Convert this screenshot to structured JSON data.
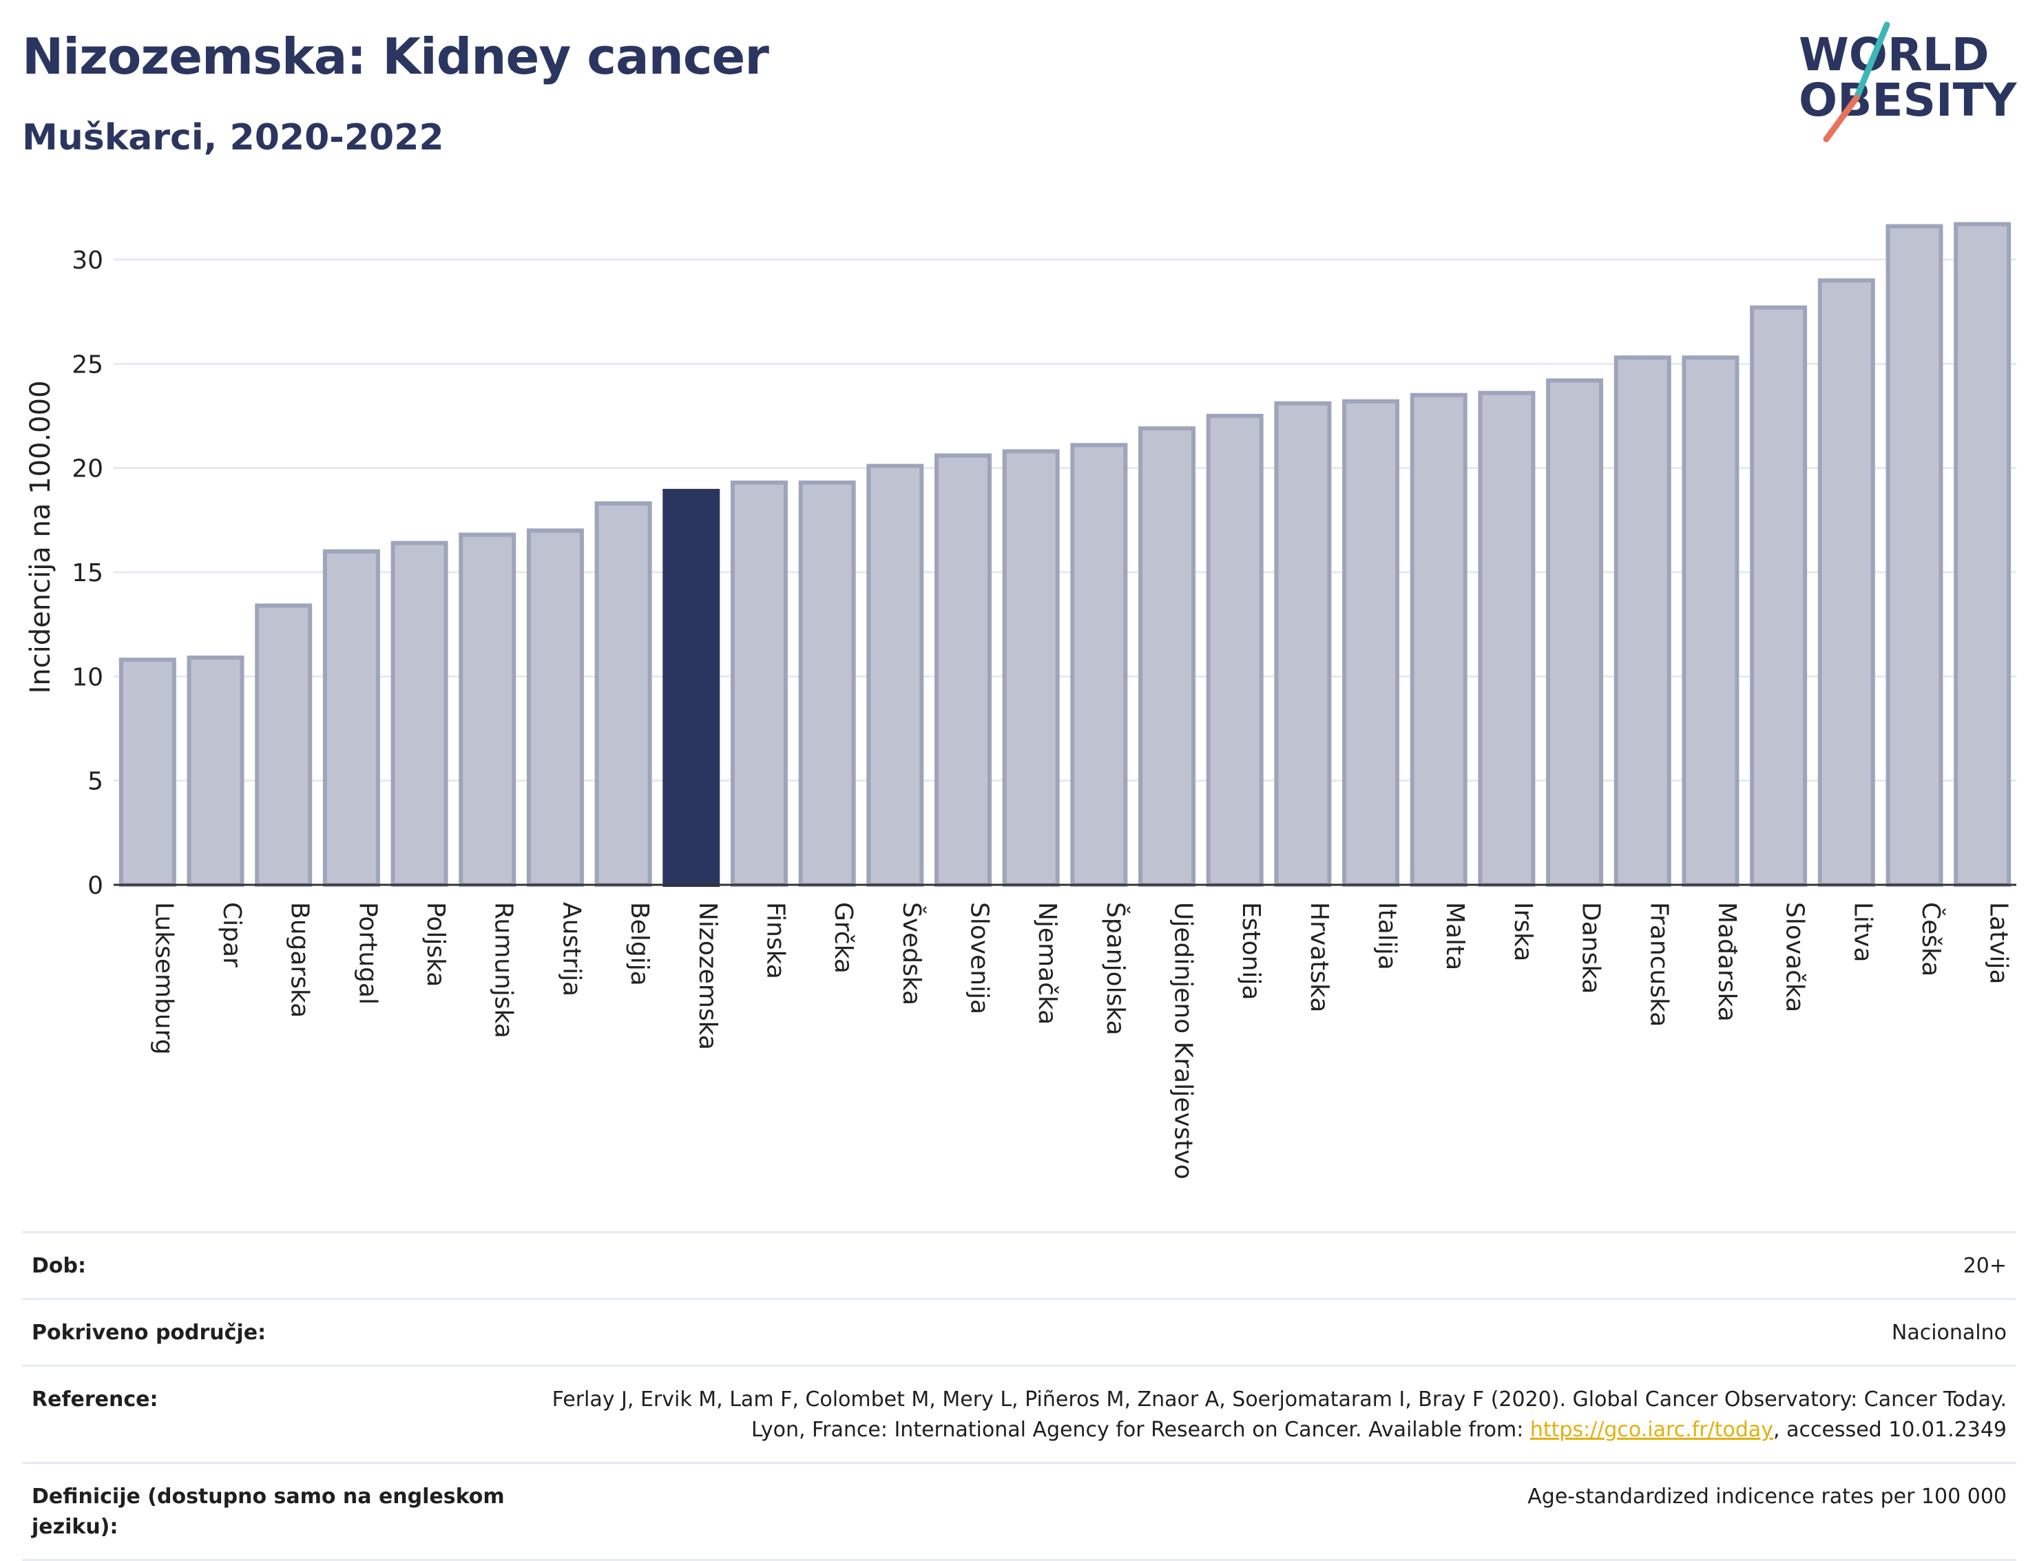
{
  "header": {
    "title": "Nizozemska: Kidney cancer",
    "subtitle": "Muškarci, 2020-2022"
  },
  "logo": {
    "line1": "WORLD",
    "line2": "OBESITY"
  },
  "colors": {
    "highlight": "#2b3660",
    "bar_fill": "#bfc3d1",
    "bar_stroke": "#9ea4bb",
    "grid": "#e6eaf0",
    "logo_teal": "#3bb7b6",
    "logo_coral": "#e8735a"
  },
  "chart_data": {
    "type": "bar",
    "title": "",
    "xlabel": "",
    "ylabel": "Incidencija na 100.000",
    "ylim": [
      0,
      33
    ],
    "yticks": [
      0,
      5,
      10,
      15,
      20,
      25,
      30
    ],
    "grid": true,
    "highlight": "Nizozemska",
    "categories": [
      "Luksemburg",
      "Cipar",
      "Bugarska",
      "Portugal",
      "Poljska",
      "Rumunjska",
      "Austrija",
      "Belgija",
      "Nizozemska",
      "Finska",
      "Grčka",
      "Švedska",
      "Slovenija",
      "Njemačka",
      "Španjolska",
      "Ujedinjeno Kraljevstvo",
      "Estonija",
      "Hrvatska",
      "Italija",
      "Malta",
      "Irska",
      "Danska",
      "Francuska",
      "Mađarska",
      "Slovačka",
      "Litva",
      "Češka",
      "Latvija"
    ],
    "values": [
      10.8,
      10.9,
      13.4,
      16.0,
      16.4,
      16.8,
      17.0,
      18.3,
      18.9,
      19.3,
      19.3,
      20.1,
      20.6,
      20.8,
      21.1,
      21.9,
      22.5,
      23.1,
      23.2,
      23.5,
      23.6,
      24.2,
      25.3,
      25.3,
      27.7,
      29.0,
      31.6,
      31.7
    ]
  },
  "meta": {
    "age_label": "Dob:",
    "age_value": "20+",
    "coverage_label": "Pokriveno područje:",
    "coverage_value": "Nacionalno",
    "reference_label": "Reference:",
    "reference_text_1": "Ferlay J, Ervik M, Lam F, Colombet M, Mery L, Piñeros M, Znaor A, Soerjomataram I, Bray F (2020). Global Cancer Observatory: Cancer Today. Lyon, France: International Agency for Research on Cancer. Available from: ",
    "reference_link": "https://gco.iarc.fr/today",
    "reference_text_2": ", accessed 10.01.2349",
    "definitions_label": "Definicije (dostupno samo na engleskom jeziku):",
    "definitions_value": "Age-standardized indicence rates per 100 000"
  }
}
